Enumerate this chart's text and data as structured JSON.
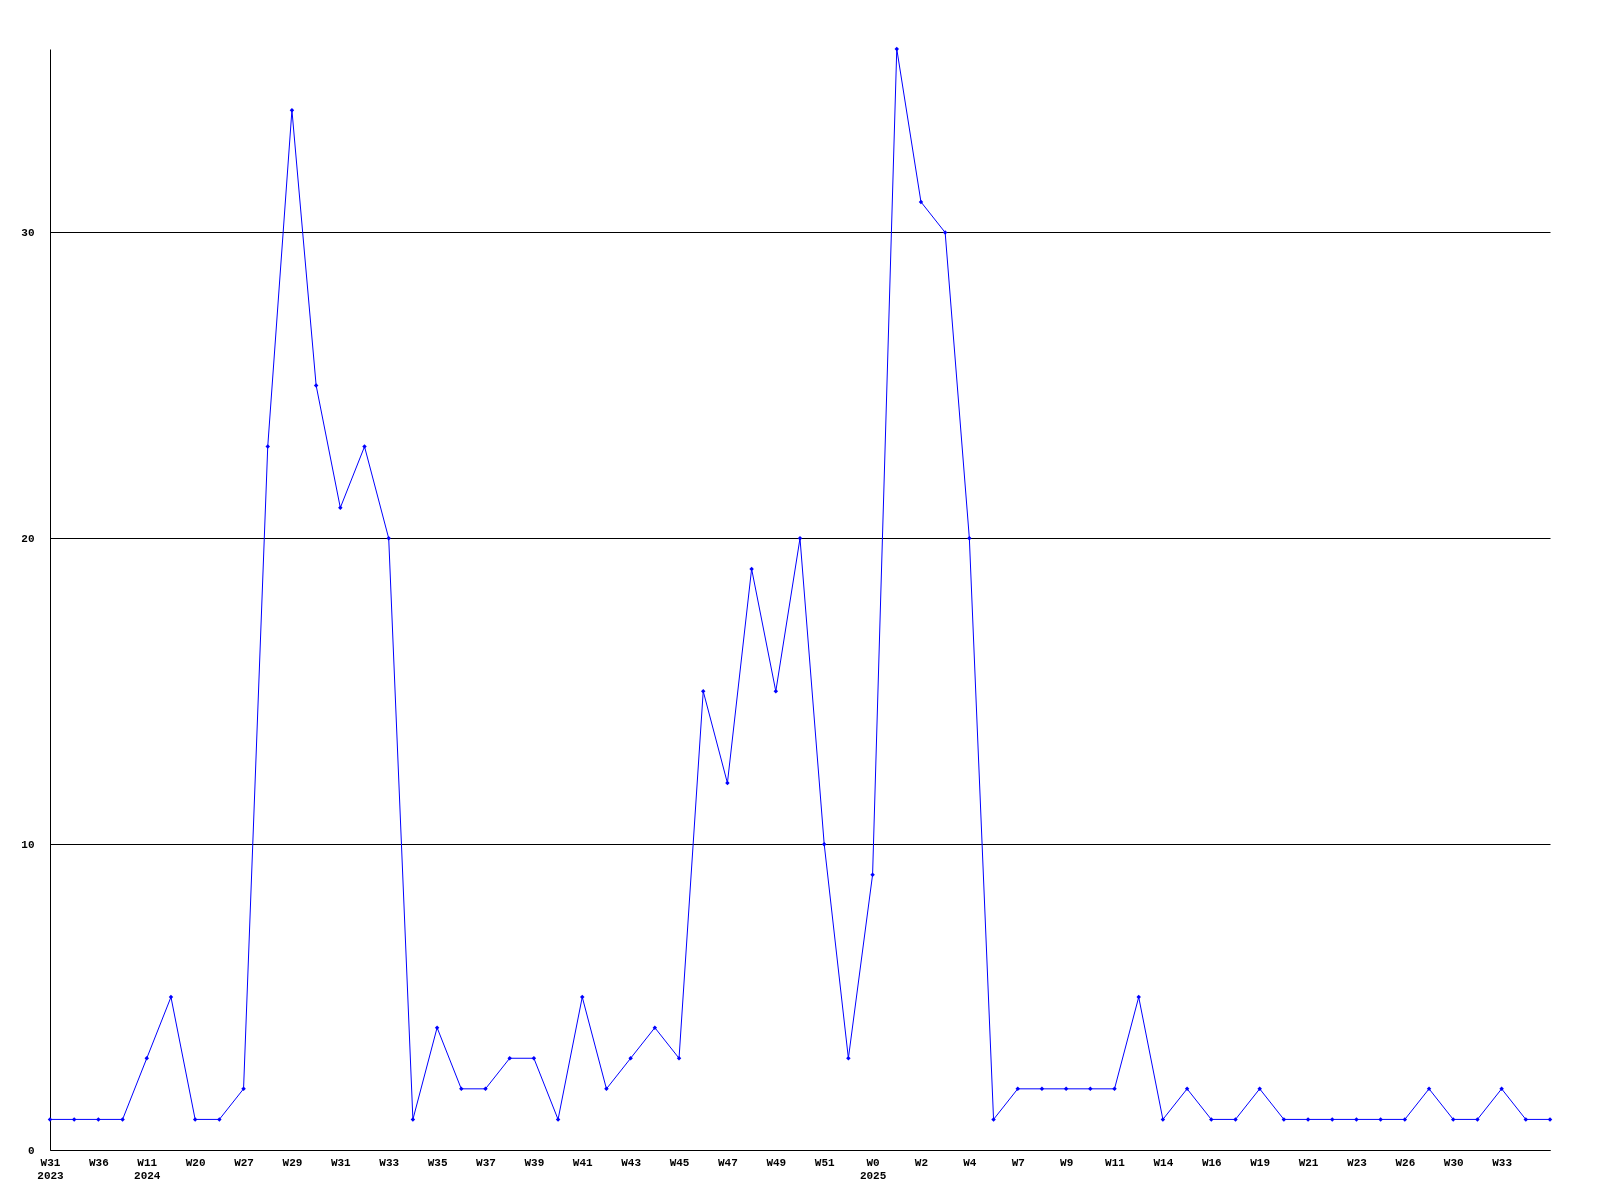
{
  "chart_data": {
    "type": "line",
    "categories": [
      "W31\n2023",
      null,
      "W36",
      null,
      "W11\n2024",
      null,
      "W20",
      null,
      "W27",
      null,
      "W29",
      null,
      "W31",
      null,
      "W33",
      null,
      "W35",
      null,
      "W37",
      null,
      "W39",
      null,
      "W41",
      null,
      "W43",
      null,
      "W45",
      null,
      "W47",
      null,
      "W49",
      null,
      "W51",
      null,
      "W0\n2025",
      null,
      "W2",
      null,
      "W4",
      null,
      "W7",
      null,
      "W9",
      null,
      "W11",
      null,
      "W14",
      null,
      "W16",
      null,
      "W19",
      null,
      "W21",
      null,
      "W23",
      null,
      "W26",
      null,
      "W30",
      null,
      "W33",
      null,
      null
    ],
    "series": [
      {
        "color": "#0000ff",
        "values": [
          1,
          1,
          1,
          1,
          3,
          5,
          1,
          1,
          2,
          23,
          34,
          25,
          21,
          23,
          20,
          1,
          4,
          2,
          2,
          3,
          3,
          1,
          5,
          2,
          3,
          4,
          3,
          15,
          12,
          19,
          15,
          20,
          10,
          3,
          9,
          36,
          31,
          30,
          20,
          1,
          2,
          2,
          2,
          2,
          2,
          5,
          1,
          2,
          1,
          1,
          2,
          1,
          1,
          1,
          1,
          1,
          1,
          2,
          1,
          1,
          2,
          1,
          1
        ]
      }
    ],
    "ylim": [
      0,
      36
    ],
    "yticks": [
      0,
      10,
      20,
      30
    ],
    "grid": "y",
    "marker": "diamond",
    "line_style": "solid"
  }
}
